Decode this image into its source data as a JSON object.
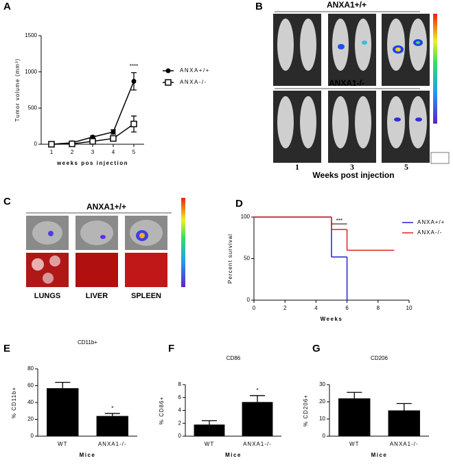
{
  "figure": {
    "panel_B": {
      "label": "B",
      "top_group": "ANXA1+/+",
      "bottom_group": "ANXA1-/-",
      "weeks": [
        "1",
        "3",
        "5"
      ],
      "x_label": "Weeks post injection"
    },
    "panel_C": {
      "label": "C",
      "group": "ANXA1+/+",
      "organs": [
        "LUNGS",
        "LIVER",
        "SPLEEN"
      ]
    }
  },
  "chart_data": [
    {
      "type": "line",
      "panel": "A",
      "categories": [
        "1",
        "2",
        "3",
        "4",
        "5"
      ],
      "series": [
        {
          "name": "ANXA+/+",
          "color": "#000000",
          "marker": "circle",
          "values": [
            0,
            20,
            100,
            170,
            870
          ],
          "errors": [
            0,
            5,
            15,
            30,
            120
          ]
        },
        {
          "name": "ANXA-/-",
          "color": "#000000",
          "marker": "square",
          "values": [
            0,
            5,
            40,
            80,
            280
          ],
          "errors": [
            0,
            3,
            10,
            15,
            110
          ]
        }
      ],
      "ylim": [
        0,
        1500
      ],
      "yticks": [
        0,
        500,
        1000,
        1500
      ],
      "x_label": "weeks pos injection",
      "y_label": "Tumor volume (mm³)",
      "annotation": "****"
    },
    {
      "type": "step",
      "panel": "D",
      "series": [
        {
          "name": "ANXA+/+",
          "color": "#1f1fd0",
          "x": [
            0,
            5,
            6
          ],
          "values": [
            100,
            52,
            0
          ]
        },
        {
          "name": "ANXA-/-",
          "color": "#e02020",
          "x": [
            0,
            5,
            6,
            9
          ],
          "values": [
            100,
            85,
            60,
            60
          ]
        }
      ],
      "xlim": [
        0,
        10
      ],
      "xticks": [
        0,
        2,
        4,
        6,
        8,
        10
      ],
      "ylim": [
        0,
        100
      ],
      "yticks": [
        0,
        50,
        100
      ],
      "x_label": "Weeks",
      "y_label": "Percent survival",
      "annotation": "***"
    },
    {
      "type": "bar",
      "panel": "E",
      "title": "CD11b+",
      "categories": [
        "WT",
        "ANXA1-/-"
      ],
      "values": [
        57,
        24
      ],
      "errors": [
        7,
        3
      ],
      "color": "#000000",
      "ylim": [
        0,
        80
      ],
      "yticks": [
        0,
        20,
        40,
        60,
        80
      ],
      "x_label": "Mice",
      "y_label": "% CD11b+",
      "annotation": "*"
    },
    {
      "type": "bar",
      "panel": "F",
      "title": "CD86",
      "categories": [
        "WT",
        "ANXA1-/-"
      ],
      "values": [
        1.8,
        5.3
      ],
      "errors": [
        0.6,
        1.0
      ],
      "color": "#000000",
      "ylim": [
        0,
        8
      ],
      "yticks": [
        0,
        2,
        4,
        6,
        8
      ],
      "x_label": "Mice",
      "y_label": "% CD86+",
      "annotation": "*"
    },
    {
      "type": "bar",
      "panel": "G",
      "title": "CD206",
      "categories": [
        "WT",
        "ANXA1-/-"
      ],
      "values": [
        22,
        15
      ],
      "errors": [
        3.5,
        4
      ],
      "color": "#000000",
      "ylim": [
        0,
        30
      ],
      "yticks": [
        0,
        10,
        20,
        30
      ],
      "x_label": "Mice",
      "y_label": "% CD206+"
    }
  ]
}
